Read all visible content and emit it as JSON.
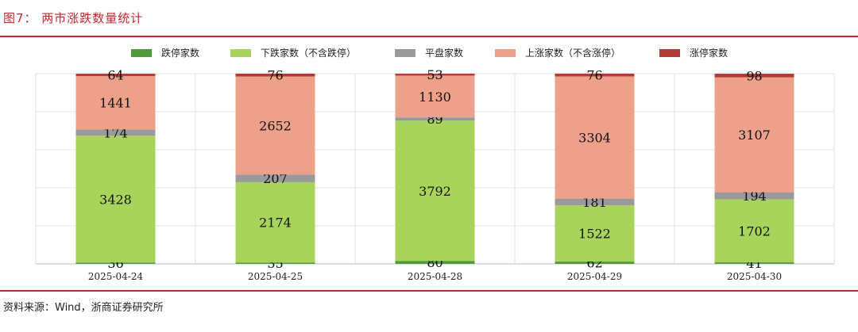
{
  "header": {
    "title": "图7：  两市涨跌数量统计"
  },
  "footer": {
    "source": "资料来源：Wind，浙商证券研究所"
  },
  "colors": {
    "limit_down": "#4e9a3b",
    "down": "#a9d45b",
    "flat": "#9a9a9a",
    "up": "#eda08a",
    "limit_up": "#b23a37",
    "title": "#c0282d"
  },
  "chart_data": {
    "type": "bar",
    "stacked": true,
    "categories": [
      "2025-04-24",
      "2025-04-25",
      "2025-04-28",
      "2025-04-29",
      "2025-04-30"
    ],
    "series": [
      {
        "name": "跌停家数",
        "color": "#4e9a3b",
        "values": [
          36,
          35,
          80,
          62,
          41
        ]
      },
      {
        "name": "下跌家数（不含跌停）",
        "color": "#a9d45b",
        "values": [
          3428,
          2174,
          3792,
          1522,
          1702
        ]
      },
      {
        "name": "平盘家数",
        "color": "#9a9a9a",
        "values": [
          174,
          207,
          89,
          181,
          194
        ]
      },
      {
        "name": "上涨家数（不含涨停）",
        "color": "#eda08a",
        "values": [
          1441,
          2652,
          1130,
          3304,
          3107
        ]
      },
      {
        "name": "涨停家数",
        "color": "#b23a37",
        "values": [
          64,
          76,
          53,
          76,
          98
        ]
      }
    ],
    "legend_position": "top",
    "grid": true,
    "ylim": [
      0,
      5143
    ]
  }
}
